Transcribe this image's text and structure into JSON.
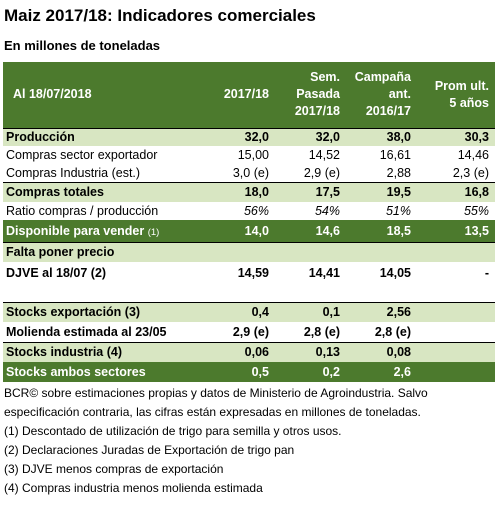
{
  "header": {
    "title": "Maiz 2017/18: Indicadores comerciales",
    "subtitle": "En millones de toneladas"
  },
  "table": {
    "corner": "Al 18/07/2018",
    "columns": [
      [
        "2017/18"
      ],
      [
        "Sem.",
        "Pasada",
        "2017/18"
      ],
      [
        "Campaña",
        "ant.",
        "2016/17"
      ],
      [
        "Prom ult.",
        "5 años"
      ]
    ],
    "rows": [
      {
        "label": "Producción",
        "values": [
          "32,0",
          "32,0",
          "38,0",
          "30,3"
        ]
      },
      {
        "label": "Compras sector exportador",
        "values": [
          "15,00",
          "14,52",
          "16,61",
          "14,46"
        ]
      },
      {
        "label": "Compras Industria (est.)",
        "values": [
          "3,0 (e)",
          "2,9 (e)",
          "2,88",
          "2,3 (e)"
        ]
      },
      {
        "label": "Compras totales",
        "values": [
          "18,0",
          "17,5",
          "19,5",
          "16,8"
        ]
      },
      {
        "label": "Ratio compras / producción",
        "values": [
          "56%",
          "54%",
          "51%",
          "55%"
        ]
      },
      {
        "label": "Disponible para vender",
        "label_note": "(1)",
        "values": [
          "14,0",
          "14,6",
          "18,5",
          "13,5"
        ]
      },
      {
        "label": "Falta poner precio",
        "values": []
      },
      {
        "label": "DJVE al 18/07 (2)",
        "values": [
          "14,59",
          "14,41",
          "14,05",
          "-"
        ]
      },
      {
        "label": "Stocks exportación (3)",
        "values": [
          "0,4",
          "0,1",
          "2,56"
        ]
      },
      {
        "label": "Molienda estimada al 23/05",
        "values": [
          "2,9 (e)",
          "2,8 (e)",
          "2,8 (e)"
        ]
      },
      {
        "label": "Stocks industria (4)",
        "values": [
          "0,06",
          "0,13",
          "0,08"
        ]
      },
      {
        "label": "Stocks ambos sectores",
        "values": [
          "0,5",
          "0,2",
          "2,6"
        ]
      }
    ]
  },
  "notes": [
    "BCR© sobre estimaciones propias y datos de Ministerio de Agroindustria. Salvo especificación contraria, las cifras están expresadas en millones de toneladas.",
    "(1) Descontado de utilización de trigo para semilla y otros usos.",
    "(2) Declaraciones Juradas de Exportación de trigo pan",
    "(3) DJVE menos compras de exportación",
    "(4) Compras industria menos molienda estimada"
  ]
}
